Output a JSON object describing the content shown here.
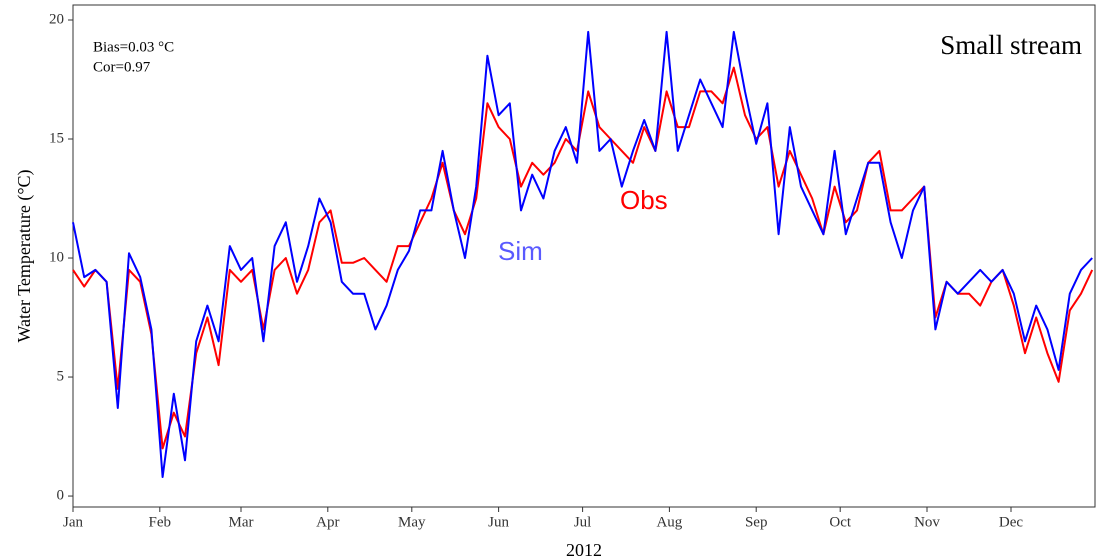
{
  "chart_data": {
    "type": "line",
    "annotations": [
      "Bias=0.03 °C",
      "Cor=0.97",
      "Small stream"
    ],
    "ylabel": "Water Temperature (°C)",
    "xlabel": "2012",
    "x": [
      1,
      5,
      9,
      13,
      17,
      21,
      25,
      29,
      33,
      37,
      41,
      45,
      49,
      53,
      57,
      61,
      65,
      69,
      73,
      77,
      81,
      85,
      89,
      93,
      97,
      101,
      105,
      109,
      113,
      117,
      121,
      125,
      129,
      133,
      137,
      141,
      145,
      149,
      153,
      157,
      161,
      165,
      169,
      173,
      177,
      181,
      185,
      189,
      193,
      197,
      201,
      205,
      209,
      213,
      217,
      221,
      225,
      229,
      233,
      237,
      241,
      245,
      249,
      253,
      257,
      261,
      265,
      269,
      273,
      277,
      281,
      285,
      289,
      293,
      297,
      301,
      305,
      309,
      313,
      317,
      321,
      325,
      329,
      333,
      337,
      341,
      345,
      349,
      353,
      357,
      361,
      365
    ],
    "series": [
      {
        "name": "Obs",
        "color": "#ff0000",
        "values": [
          9.5,
          8.8,
          9.5,
          9.0,
          4.5,
          9.5,
          9.0,
          6.8,
          2.0,
          3.5,
          2.5,
          6.0,
          7.5,
          5.5,
          9.5,
          9.0,
          9.5,
          7.0,
          9.5,
          10.0,
          8.5,
          9.5,
          11.5,
          12.0,
          9.8,
          9.8,
          10.0,
          9.5,
          9.0,
          10.5,
          10.5,
          11.5,
          12.5,
          14.0,
          12.0,
          11.0,
          12.5,
          16.5,
          15.5,
          15.0,
          13.0,
          14.0,
          13.5,
          14.0,
          15.0,
          14.5,
          17.0,
          15.5,
          15.0,
          14.5,
          14.0,
          15.5,
          14.5,
          17.0,
          15.5,
          15.5,
          17.0,
          17.0,
          16.5,
          18.0,
          16.0,
          15.0,
          15.5,
          13.0,
          14.5,
          13.5,
          12.5,
          11.0,
          13.0,
          11.5,
          12.0,
          14.0,
          14.5,
          12.0,
          12.0,
          12.5,
          13.0,
          7.5,
          9.0,
          8.5,
          8.5,
          8.0,
          9.0,
          9.5,
          8.0,
          6.0,
          7.5,
          6.0,
          4.8,
          7.8,
          8.5,
          9.5
        ]
      },
      {
        "name": "Sim",
        "color": "#0000ff",
        "label_color": "#5a5aff",
        "values": [
          11.5,
          9.2,
          9.5,
          9.0,
          3.7,
          10.2,
          9.2,
          7.0,
          0.8,
          4.3,
          1.5,
          6.5,
          8.0,
          6.5,
          10.5,
          9.5,
          10.0,
          6.5,
          10.5,
          11.5,
          9.0,
          10.5,
          12.5,
          11.5,
          9.0,
          8.5,
          8.5,
          7.0,
          8.0,
          9.5,
          10.3,
          12.0,
          12.0,
          14.5,
          12.0,
          10.0,
          13.0,
          18.5,
          16.0,
          16.5,
          12.0,
          13.5,
          12.5,
          14.5,
          15.5,
          14.0,
          19.5,
          14.5,
          15.0,
          13.0,
          14.5,
          15.8,
          14.5,
          19.5,
          14.5,
          16.0,
          17.5,
          16.5,
          15.5,
          19.5,
          17.0,
          14.8,
          16.5,
          11.0,
          15.5,
          13.0,
          12.0,
          11.0,
          14.5,
          11.0,
          12.5,
          14.0,
          14.0,
          11.5,
          10.0,
          12.0,
          13.0,
          7.0,
          9.0,
          8.5,
          9.0,
          9.5,
          9.0,
          9.5,
          8.5,
          6.5,
          8.0,
          7.0,
          5.3,
          8.5,
          9.5,
          10.0
        ]
      }
    ],
    "xlim": [
      1,
      366
    ],
    "xticks": [
      {
        "value": 1,
        "label": "Jan"
      },
      {
        "value": 32,
        "label": "Feb"
      },
      {
        "value": 61,
        "label": "Mar"
      },
      {
        "value": 92,
        "label": "Apr"
      },
      {
        "value": 122,
        "label": "May"
      },
      {
        "value": 153,
        "label": "Jun"
      },
      {
        "value": 183,
        "label": "Jul"
      },
      {
        "value": 214,
        "label": "Aug"
      },
      {
        "value": 245,
        "label": "Sep"
      },
      {
        "value": 275,
        "label": "Oct"
      },
      {
        "value": 306,
        "label": "Nov"
      },
      {
        "value": 336,
        "label": "Dec"
      }
    ],
    "ylim": [
      -0.46,
      20.63
    ],
    "yticks": [
      0,
      5,
      10,
      15,
      20
    ],
    "grid": false
  }
}
